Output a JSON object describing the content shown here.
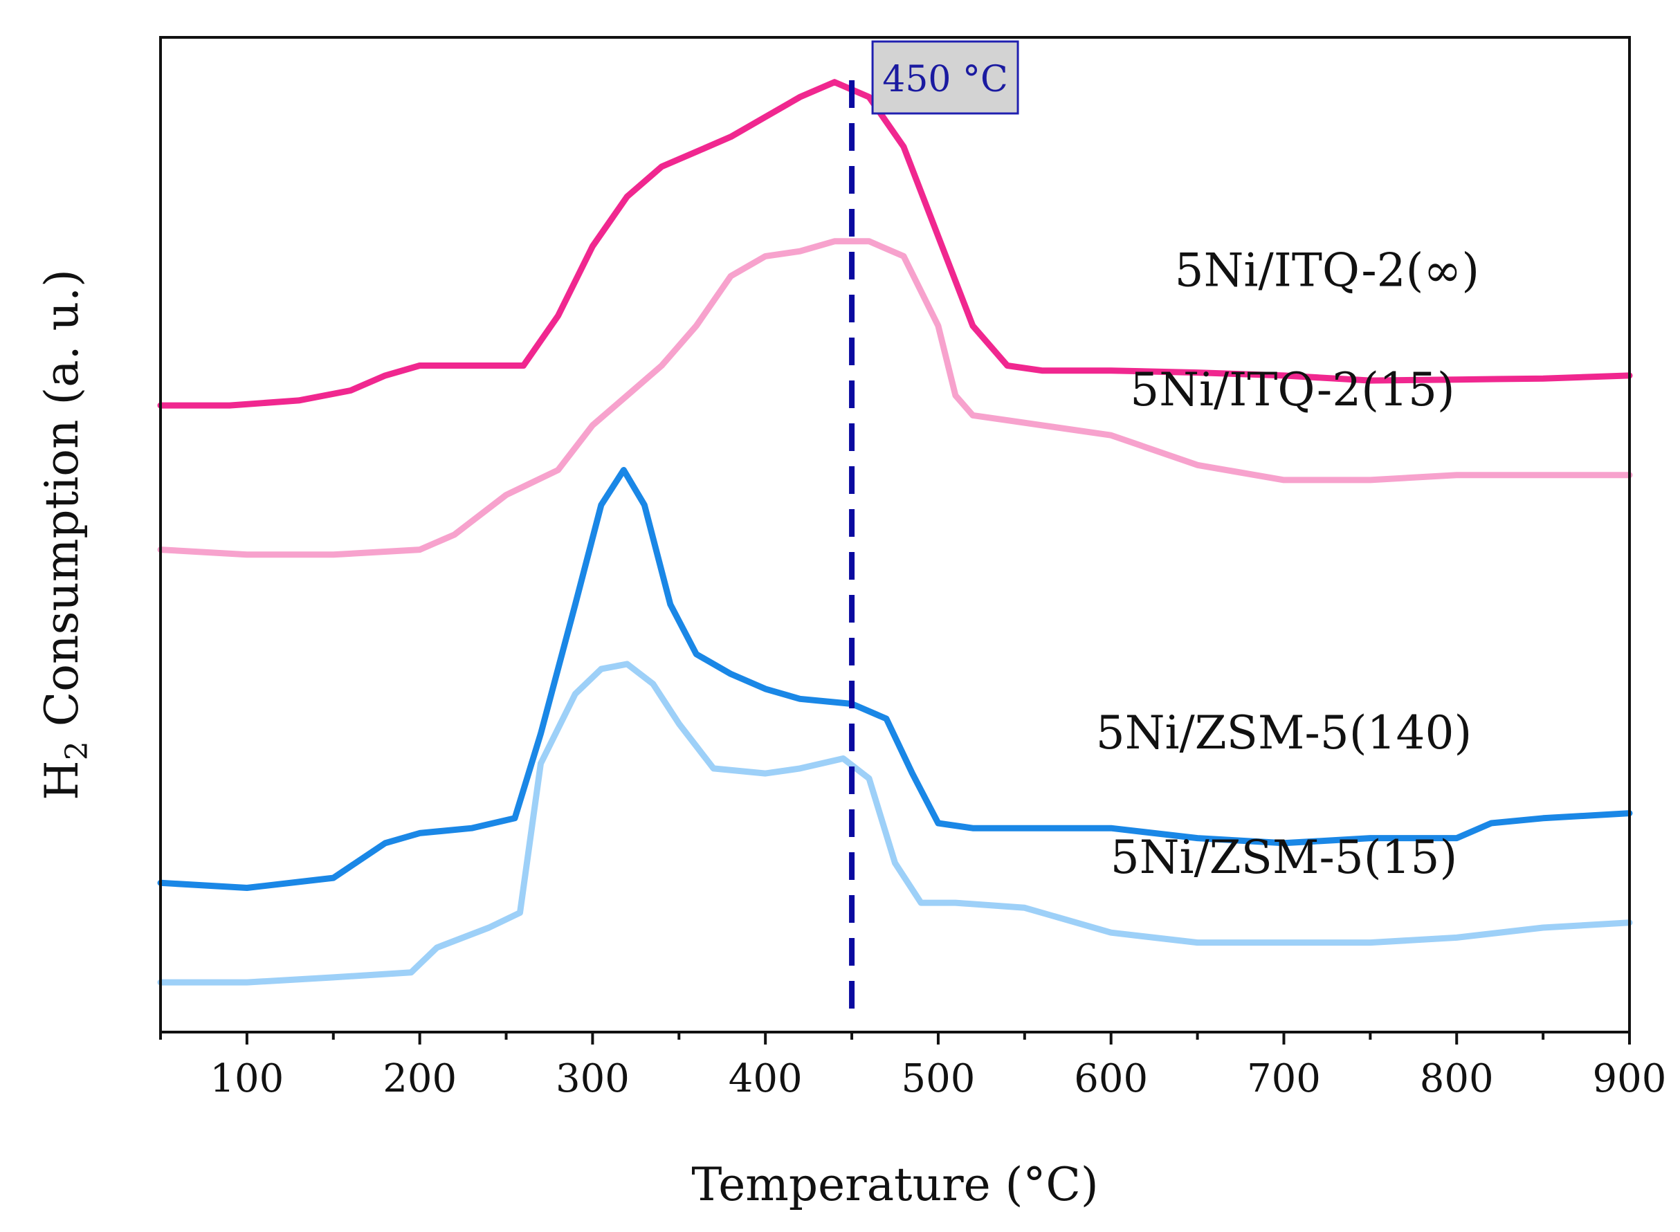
{
  "chart_data": {
    "type": "line",
    "title": "",
    "xlabel": "Temperature (°C)",
    "ylabel_main": "H",
    "ylabel_sub": "2",
    "ylabel_rest": " Consumption (a. u.)",
    "xlim": [
      50,
      900
    ],
    "ylim": [
      0,
      100
    ],
    "xticks": [
      100,
      200,
      300,
      400,
      500,
      600,
      700,
      800,
      900
    ],
    "xtick_labels": [
      "100",
      "200",
      "300",
      "400",
      "500",
      "600",
      "700",
      "800",
      "900"
    ],
    "grid": false,
    "vline": {
      "x": 450,
      "color": "#0a0aa0",
      "style": "dashed",
      "label": "450 °C",
      "label_bg": "#d3d3d3"
    },
    "series": [
      {
        "name": "5Ni/ITQ-2(∞)",
        "color": "#f0278f",
        "label_anchor": [
          725,
          75
        ],
        "x": [
          50,
          90,
          130,
          160,
          180,
          200,
          230,
          260,
          280,
          300,
          320,
          340,
          360,
          380,
          400,
          420,
          440,
          460,
          480,
          500,
          520,
          540,
          560,
          600,
          650,
          700,
          750,
          800,
          850,
          900
        ],
        "y": [
          63,
          63,
          63.5,
          64.5,
          66,
          67,
          67,
          67,
          72,
          79,
          84,
          87,
          88.5,
          90,
          92,
          94,
          95.5,
          94,
          89,
          80,
          71,
          67,
          66.5,
          66.5,
          66.3,
          66,
          65.5,
          65.6,
          65.7,
          66
        ]
      },
      {
        "name": "5Ni/ITQ-2(15)",
        "color": "#f7a2cd",
        "label_anchor": [
          705,
          63
        ],
        "x": [
          50,
          100,
          150,
          200,
          220,
          250,
          280,
          300,
          320,
          340,
          360,
          380,
          400,
          420,
          440,
          460,
          480,
          500,
          510,
          520,
          540,
          560,
          600,
          650,
          700,
          750,
          800,
          850,
          900
        ],
        "y": [
          48.5,
          48,
          48,
          48.5,
          50,
          54,
          56.5,
          61,
          64,
          67,
          71,
          76,
          78,
          78.5,
          79.5,
          79.5,
          78,
          71,
          64,
          62,
          61.5,
          61,
          60,
          57,
          55.5,
          55.5,
          56,
          56,
          56
        ]
      },
      {
        "name": "5Ni/ZSM-5(140)",
        "color": "#1a87e6",
        "label_anchor": [
          700,
          28.5
        ],
        "x": [
          50,
          100,
          150,
          180,
          200,
          230,
          255,
          270,
          290,
          305,
          318,
          330,
          345,
          360,
          380,
          400,
          420,
          450,
          470,
          485,
          500,
          520,
          550,
          600,
          650,
          700,
          750,
          800,
          820,
          850,
          900
        ],
        "y": [
          15,
          14.5,
          15.5,
          19,
          20,
          20.5,
          21.5,
          30,
          43,
          53,
          56.5,
          53,
          43,
          38,
          36,
          34.5,
          33.5,
          33,
          31.5,
          26,
          21,
          20.5,
          20.5,
          20.5,
          19.5,
          19,
          19.5,
          19.5,
          21,
          21.5,
          22
        ]
      },
      {
        "name": "5Ni/ZSM-5(15)",
        "color": "#9dd0f8",
        "label_anchor": [
          700,
          16
        ],
        "x": [
          50,
          100,
          150,
          195,
          210,
          240,
          258,
          270,
          290,
          305,
          320,
          335,
          350,
          370,
          400,
          420,
          445,
          460,
          475,
          490,
          510,
          550,
          600,
          650,
          700,
          750,
          800,
          850,
          900
        ],
        "y": [
          5,
          5,
          5.5,
          6,
          8.5,
          10.5,
          12,
          27,
          34,
          36.5,
          37,
          35,
          31,
          26.5,
          26,
          26.5,
          27.5,
          25.5,
          17,
          13,
          13,
          12.5,
          10,
          9,
          9,
          9,
          9.5,
          10.5,
          11
        ]
      }
    ]
  }
}
